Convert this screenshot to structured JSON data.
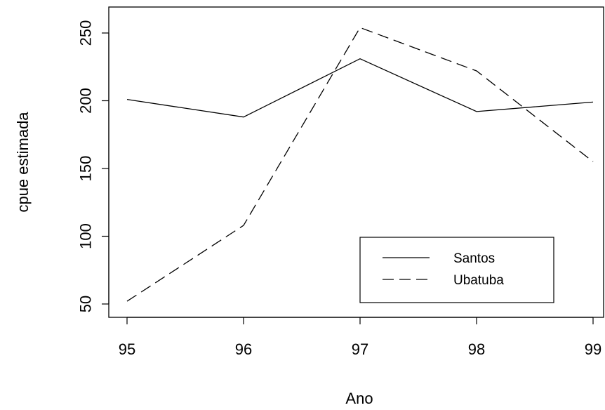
{
  "chart_data": {
    "type": "line",
    "title": "",
    "xlabel": "Ano",
    "ylabel": "cpue estimada",
    "x": [
      95,
      96,
      97,
      98,
      99
    ],
    "xticks": [
      "95",
      "96",
      "97",
      "98",
      "99"
    ],
    "yticks": [
      "50",
      "100",
      "150",
      "200",
      "250"
    ],
    "xlim": [
      95,
      99
    ],
    "ylim": [
      50,
      250
    ],
    "grid": false,
    "legend_position": "bottom-right",
    "series": [
      {
        "name": "Santos",
        "values": [
          201,
          188,
          231,
          192,
          199
        ],
        "color": "#000000",
        "linestyle": "solid"
      },
      {
        "name": "Ubatuba",
        "values": [
          52,
          108,
          254,
          222,
          155
        ],
        "color": "#000000",
        "linestyle": "dashed"
      }
    ]
  }
}
